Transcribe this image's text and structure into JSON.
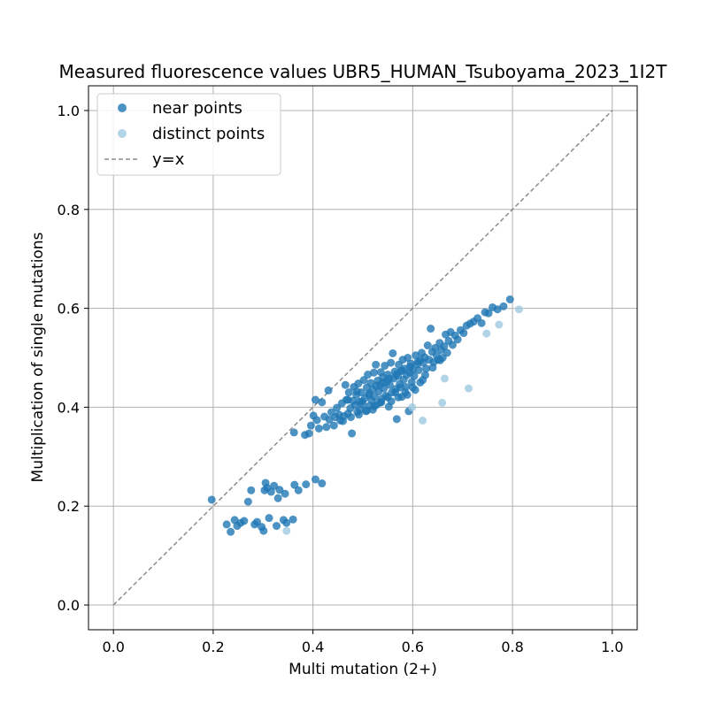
{
  "chart_data": {
    "type": "scatter",
    "title": "Measured fluorescence values UBR5_HUMAN_Tsuboyama_2023_1I2T",
    "xlabel": "Multi mutation (2+)",
    "ylabel": "Multiplication of single mutations",
    "xlim": [
      -0.05,
      1.05
    ],
    "ylim": [
      -0.05,
      1.05
    ],
    "xticks": [
      "0.0",
      "0.2",
      "0.4",
      "0.6",
      "0.8",
      "1.0"
    ],
    "yticks": [
      "0.0",
      "0.2",
      "0.4",
      "0.6",
      "0.8",
      "1.0"
    ],
    "grid": true,
    "legend_position": "top-left",
    "reference_line": {
      "name": "y=x",
      "color": "#8c8c8c",
      "style": "dashed"
    },
    "series": [
      {
        "name": "near points",
        "color": "#1f77b4",
        "points": [
          [
            0.197,
            0.213
          ],
          [
            0.227,
            0.163
          ],
          [
            0.235,
            0.148
          ],
          [
            0.243,
            0.172
          ],
          [
            0.248,
            0.16
          ],
          [
            0.255,
            0.166
          ],
          [
            0.262,
            0.17
          ],
          [
            0.27,
            0.209
          ],
          [
            0.276,
            0.232
          ],
          [
            0.283,
            0.163
          ],
          [
            0.288,
            0.168
          ],
          [
            0.297,
            0.158
          ],
          [
            0.301,
            0.15
          ],
          [
            0.303,
            0.232
          ],
          [
            0.305,
            0.247
          ],
          [
            0.308,
            0.237
          ],
          [
            0.312,
            0.176
          ],
          [
            0.316,
            0.229
          ],
          [
            0.322,
            0.241
          ],
          [
            0.327,
            0.16
          ],
          [
            0.33,
            0.216
          ],
          [
            0.333,
            0.233
          ],
          [
            0.341,
            0.172
          ],
          [
            0.344,
            0.225
          ],
          [
            0.347,
            0.166
          ],
          [
            0.36,
            0.173
          ],
          [
            0.363,
            0.243
          ],
          [
            0.371,
            0.232
          ],
          [
            0.386,
            0.244
          ],
          [
            0.405,
            0.254
          ],
          [
            0.418,
            0.246
          ],
          [
            0.362,
            0.349
          ],
          [
            0.384,
            0.344
          ],
          [
            0.392,
            0.347
          ],
          [
            0.396,
            0.363
          ],
          [
            0.401,
            0.383
          ],
          [
            0.405,
            0.415
          ],
          [
            0.408,
            0.374
          ],
          [
            0.412,
            0.357
          ],
          [
            0.418,
            0.41
          ],
          [
            0.423,
            0.381
          ],
          [
            0.427,
            0.36
          ],
          [
            0.431,
            0.434
          ],
          [
            0.433,
            0.375
          ],
          [
            0.437,
            0.39
          ],
          [
            0.442,
            0.363
          ],
          [
            0.445,
            0.38
          ],
          [
            0.448,
            0.399
          ],
          [
            0.452,
            0.385
          ],
          [
            0.455,
            0.373
          ],
          [
            0.458,
            0.408
          ],
          [
            0.462,
            0.382
          ],
          [
            0.465,
            0.445
          ],
          [
            0.467,
            0.415
          ],
          [
            0.47,
            0.387
          ],
          [
            0.472,
            0.43
          ],
          [
            0.475,
            0.398
          ],
          [
            0.478,
            0.347
          ],
          [
            0.48,
            0.413
          ],
          [
            0.482,
            0.441
          ],
          [
            0.485,
            0.404
          ],
          [
            0.487,
            0.425
          ],
          [
            0.489,
            0.39
          ],
          [
            0.491,
            0.448
          ],
          [
            0.493,
            0.411
          ],
          [
            0.495,
            0.395
          ],
          [
            0.497,
            0.43
          ],
          [
            0.5,
            0.406
          ],
          [
            0.502,
            0.455
          ],
          [
            0.504,
            0.418
          ],
          [
            0.506,
            0.392
          ],
          [
            0.508,
            0.44
          ],
          [
            0.51,
            0.466
          ],
          [
            0.512,
            0.425
          ],
          [
            0.514,
            0.403
          ],
          [
            0.516,
            0.449
          ],
          [
            0.518,
            0.414
          ],
          [
            0.52,
            0.436
          ],
          [
            0.522,
            0.47
          ],
          [
            0.524,
            0.421
          ],
          [
            0.526,
            0.486
          ],
          [
            0.528,
            0.405
          ],
          [
            0.53,
            0.454
          ],
          [
            0.532,
            0.432
          ],
          [
            0.534,
            0.445
          ],
          [
            0.536,
            0.471
          ],
          [
            0.538,
            0.417
          ],
          [
            0.54,
            0.46
          ],
          [
            0.542,
            0.438
          ],
          [
            0.544,
            0.484
          ],
          [
            0.546,
            0.423
          ],
          [
            0.548,
            0.452
          ],
          [
            0.55,
            0.466
          ],
          [
            0.552,
            0.401
          ],
          [
            0.554,
            0.445
          ],
          [
            0.556,
            0.49
          ],
          [
            0.558,
            0.43
          ],
          [
            0.56,
            0.509
          ],
          [
            0.562,
            0.458
          ],
          [
            0.564,
            0.472
          ],
          [
            0.566,
            0.437
          ],
          [
            0.568,
            0.376
          ],
          [
            0.57,
            0.463
          ],
          [
            0.572,
            0.486
          ],
          [
            0.574,
            0.447
          ],
          [
            0.576,
            0.473
          ],
          [
            0.578,
            0.421
          ],
          [
            0.58,
            0.496
          ],
          [
            0.582,
            0.456
          ],
          [
            0.584,
            0.478
          ],
          [
            0.586,
            0.441
          ],
          [
            0.588,
            0.465
          ],
          [
            0.59,
            0.5
          ],
          [
            0.592,
            0.392
          ],
          [
            0.594,
            0.47
          ],
          [
            0.596,
            0.488
          ],
          [
            0.598,
            0.451
          ],
          [
            0.6,
            0.476
          ],
          [
            0.603,
            0.463
          ],
          [
            0.606,
            0.505
          ],
          [
            0.609,
            0.487
          ],
          [
            0.612,
            0.475
          ],
          [
            0.615,
            0.495
          ],
          [
            0.618,
            0.51
          ],
          [
            0.621,
            0.49
          ],
          [
            0.624,
            0.501
          ],
          [
            0.627,
            0.478
          ],
          [
            0.63,
            0.525
          ],
          [
            0.633,
            0.496
          ],
          [
            0.636,
            0.559
          ],
          [
            0.639,
            0.512
          ],
          [
            0.642,
            0.491
          ],
          [
            0.645,
            0.52
          ],
          [
            0.648,
            0.505
          ],
          [
            0.651,
            0.496
          ],
          [
            0.654,
            0.53
          ],
          [
            0.657,
            0.516
          ],
          [
            0.66,
            0.5
          ],
          [
            0.663,
            0.523
          ],
          [
            0.666,
            0.547
          ],
          [
            0.669,
            0.51
          ],
          [
            0.672,
            0.534
          ],
          [
            0.676,
            0.552
          ],
          [
            0.68,
            0.526
          ],
          [
            0.685,
            0.545
          ],
          [
            0.69,
            0.537
          ],
          [
            0.696,
            0.556
          ],
          [
            0.702,
            0.55
          ],
          [
            0.708,
            0.565
          ],
          [
            0.715,
            0.569
          ],
          [
            0.722,
            0.573
          ],
          [
            0.73,
            0.58
          ],
          [
            0.738,
            0.57
          ],
          [
            0.745,
            0.592
          ],
          [
            0.752,
            0.59
          ],
          [
            0.76,
            0.602
          ],
          [
            0.77,
            0.598
          ],
          [
            0.782,
            0.604
          ],
          [
            0.795,
            0.618
          ],
          [
            0.47,
            0.415
          ],
          [
            0.488,
            0.432
          ],
          [
            0.498,
            0.412
          ],
          [
            0.513,
            0.428
          ],
          [
            0.527,
            0.443
          ],
          [
            0.541,
            0.45
          ],
          [
            0.553,
            0.458
          ],
          [
            0.567,
            0.466
          ],
          [
            0.579,
            0.474
          ],
          [
            0.595,
            0.482
          ],
          [
            0.61,
            0.492
          ],
          [
            0.52,
            0.395
          ],
          [
            0.535,
            0.41
          ],
          [
            0.55,
            0.42
          ],
          [
            0.565,
            0.43
          ],
          [
            0.575,
            0.44
          ],
          [
            0.585,
            0.43
          ],
          [
            0.6,
            0.44
          ],
          [
            0.615,
            0.45
          ],
          [
            0.625,
            0.465
          ],
          [
            0.64,
            0.48
          ],
          [
            0.655,
            0.495
          ],
          [
            0.46,
            0.372
          ],
          [
            0.476,
            0.38
          ],
          [
            0.492,
            0.385
          ],
          [
            0.508,
            0.393
          ],
          [
            0.523,
            0.402
          ],
          [
            0.537,
            0.41
          ],
          [
            0.557,
            0.412
          ],
          [
            0.571,
            0.42
          ],
          [
            0.589,
            0.425
          ],
          [
            0.605,
            0.435
          ],
          [
            0.62,
            0.455
          ]
        ]
      },
      {
        "name": "distinct points",
        "color": "#9ecae1",
        "points": [
          [
            0.347,
            0.15
          ],
          [
            0.599,
            0.4
          ],
          [
            0.62,
            0.373
          ],
          [
            0.659,
            0.409
          ],
          [
            0.664,
            0.458
          ],
          [
            0.712,
            0.438
          ],
          [
            0.748,
            0.549
          ],
          [
            0.773,
            0.567
          ],
          [
            0.813,
            0.598
          ]
        ]
      }
    ]
  }
}
